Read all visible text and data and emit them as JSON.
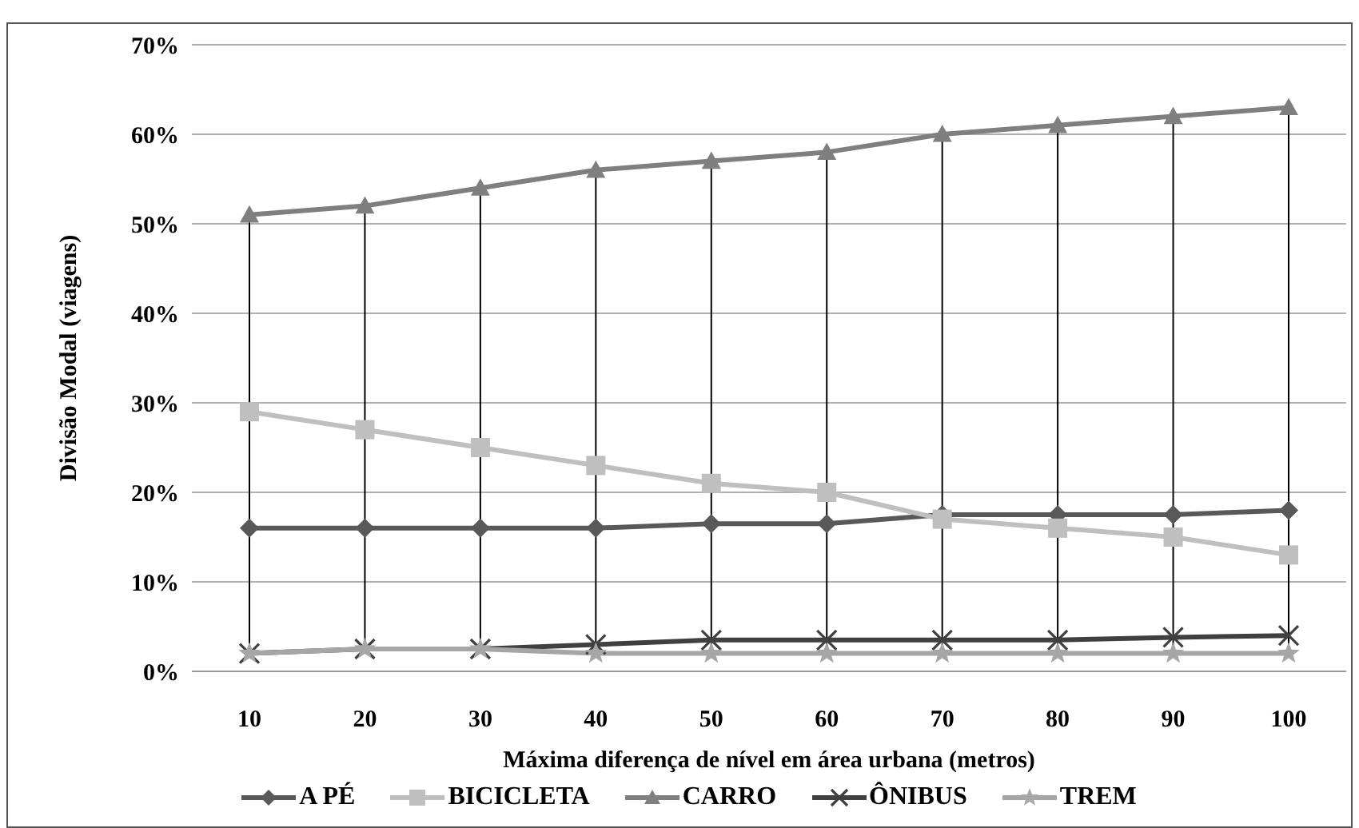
{
  "chart_data": {
    "type": "line",
    "xlabel": "Máxima diferença de nível em área urbana (metros)",
    "ylabel": "Divisão Modal (viagens)",
    "categories": [
      "10",
      "20",
      "30",
      "40",
      "50",
      "60",
      "70",
      "80",
      "90",
      "100"
    ],
    "series": [
      {
        "name": "A PÉ",
        "color": "#595959",
        "marker": "diamond",
        "values": [
          16,
          16,
          16,
          16,
          16.5,
          16.5,
          17.5,
          17.5,
          17.5,
          18
        ]
      },
      {
        "name": "BICICLETA",
        "color": "#bfbfbf",
        "marker": "square",
        "values": [
          29,
          27,
          25,
          23,
          21,
          20,
          17,
          16,
          15,
          13
        ]
      },
      {
        "name": "CARRO",
        "color": "#7f7f7f",
        "marker": "triangle",
        "values": [
          51,
          52,
          54,
          56,
          57,
          58,
          60,
          61,
          62,
          63
        ]
      },
      {
        "name": "ÔNIBUS",
        "color": "#404040",
        "marker": "cross",
        "values": [
          2,
          2.5,
          2.5,
          3,
          3.5,
          3.5,
          3.5,
          3.5,
          3.8,
          4
        ]
      },
      {
        "name": "TREM",
        "color": "#a6a6a6",
        "marker": "star",
        "values": [
          2,
          2.5,
          2.5,
          2,
          2,
          2,
          2,
          2,
          2,
          2
        ]
      }
    ],
    "ylim": [
      0,
      70
    ],
    "yticks": [
      {
        "value": 0,
        "label": "0%"
      },
      {
        "value": 10,
        "label": "10%"
      },
      {
        "value": 20,
        "label": "20%"
      },
      {
        "value": 30,
        "label": "30%"
      },
      {
        "value": 40,
        "label": "40%"
      },
      {
        "value": 50,
        "label": "50%"
      },
      {
        "value": 60,
        "label": "60%"
      },
      {
        "value": 70,
        "label": "70%"
      }
    ],
    "grid": true,
    "legend": "bottom"
  }
}
